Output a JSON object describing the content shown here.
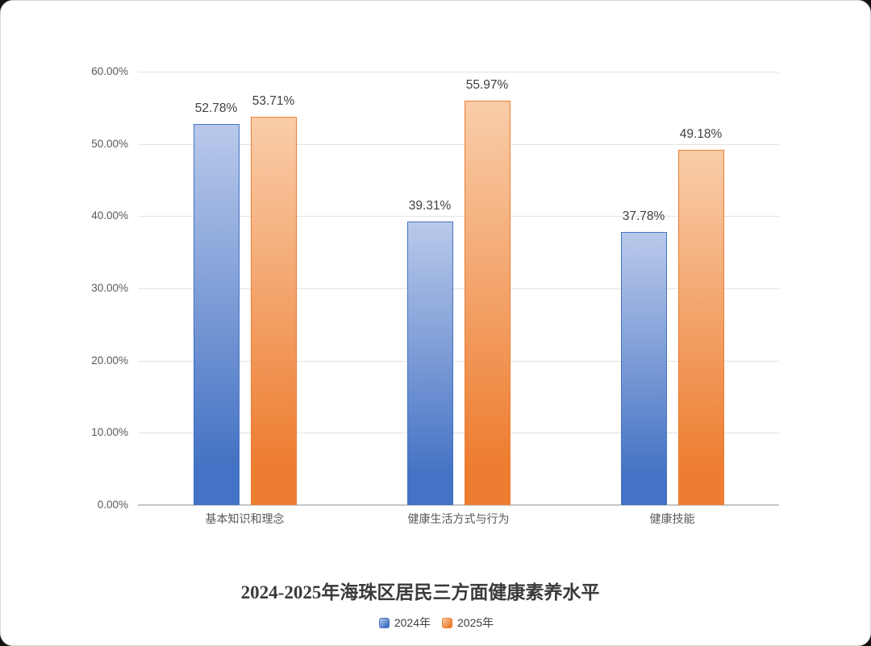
{
  "frame": {
    "page_background": "#141414",
    "card_background": "#ffffff",
    "card_border": "#d6d6d6"
  },
  "chart_data": {
    "type": "bar",
    "title": "2024-2025年海珠区居民三方面健康素养水平",
    "categories": [
      "基本知识和理念",
      "健康生活方式与行为",
      "健康技能"
    ],
    "series": [
      {
        "name": "2024年",
        "values": [
          52.78,
          39.31,
          37.78
        ],
        "labels": [
          "52.78%",
          "39.31%",
          "37.78%"
        ],
        "color": "#4472C4",
        "fill_light": "#B9C9EA"
      },
      {
        "name": "2025年",
        "values": [
          53.71,
          55.97,
          49.18
        ],
        "labels": [
          "53.71%",
          "55.97%",
          "49.18%"
        ],
        "color": "#ED7D31",
        "fill_light": "#F9CDA9"
      }
    ],
    "ylim": [
      0,
      60
    ],
    "yticks": [
      "60.00%",
      "50.00%",
      "40.00%",
      "30.00%",
      "20.00%",
      "10.00%",
      "0.00%"
    ],
    "grid": true,
    "legend_position": "bottom",
    "colors": {
      "gridline": "#e3e3e3",
      "axisline": "#c6c6c6",
      "tick_label": "#595959",
      "category_label": "#595959",
      "data_label": "#404040",
      "title": "#3a3a3a",
      "legend_label": "#404040"
    }
  }
}
